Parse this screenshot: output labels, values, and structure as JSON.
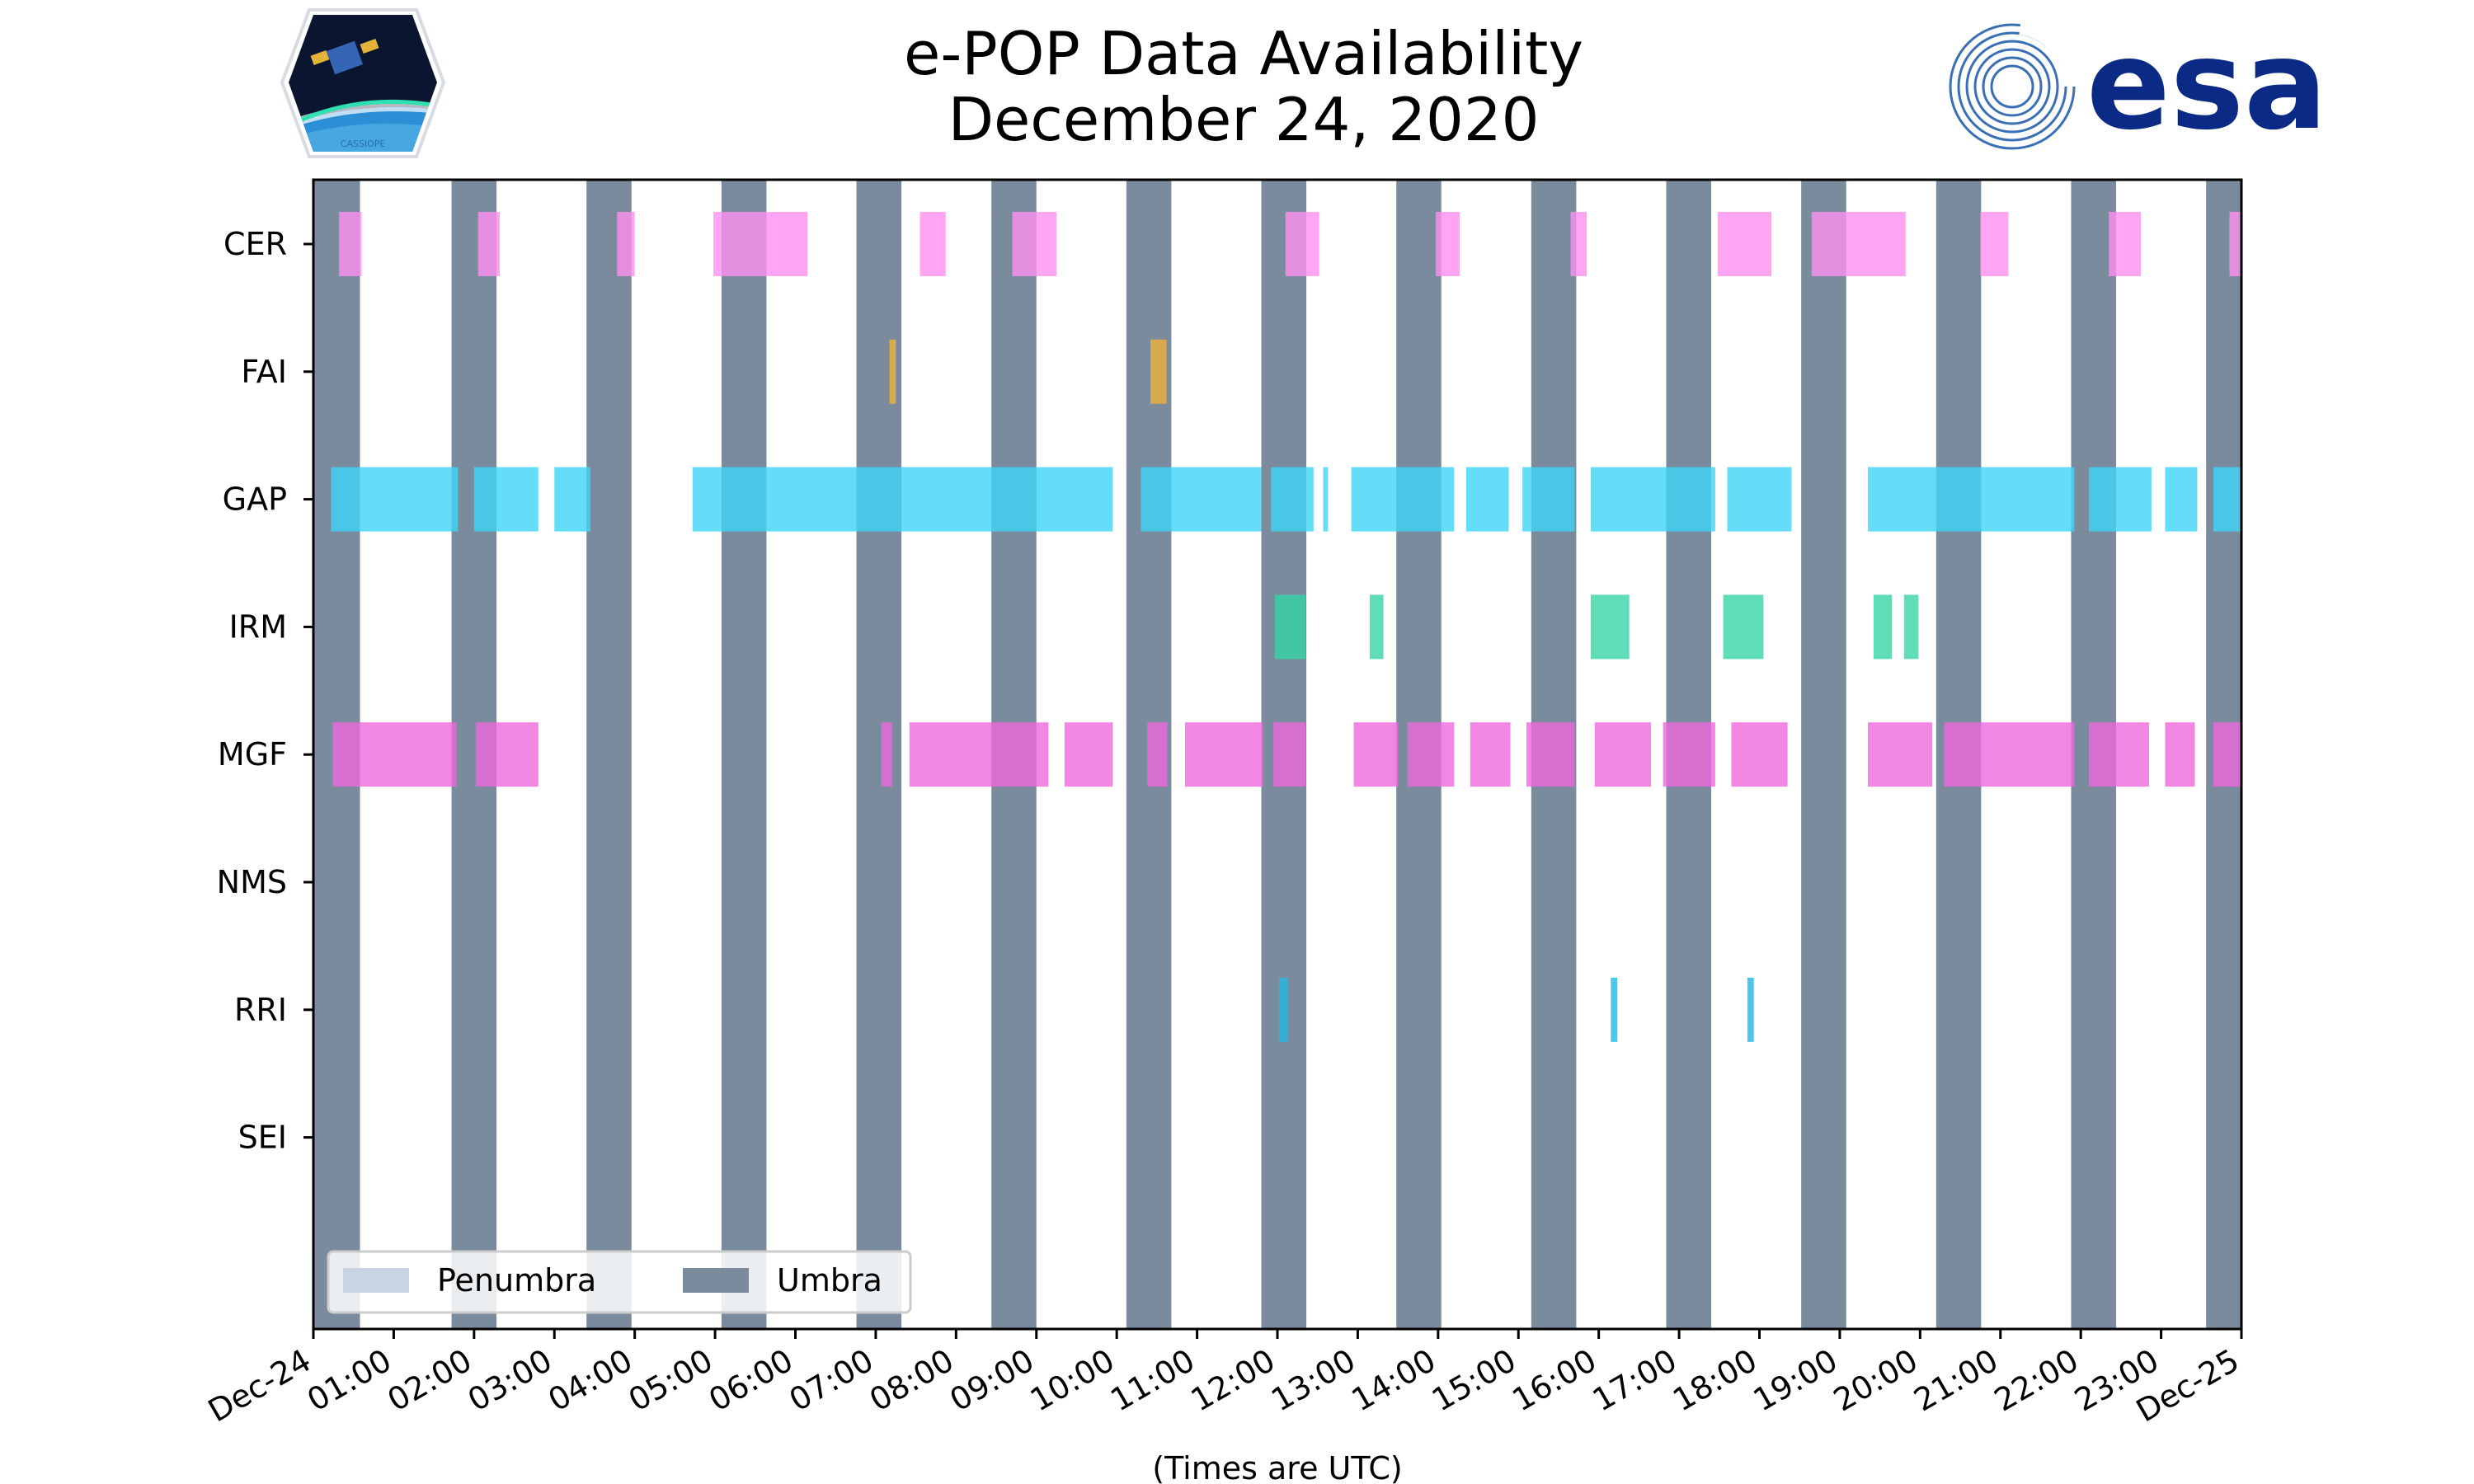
{
  "chart_data": {
    "type": "timeline",
    "title": [
      "e-POP Data Availability",
      "December 24, 2020"
    ],
    "xlabel": "(Times are UTC)",
    "xlim_hours": [
      0,
      24
    ],
    "x_tick_labels": [
      "Dec-24",
      "01:00",
      "02:00",
      "03:00",
      "04:00",
      "05:00",
      "06:00",
      "07:00",
      "08:00",
      "09:00",
      "10:00",
      "11:00",
      "12:00",
      "13:00",
      "14:00",
      "15:00",
      "16:00",
      "17:00",
      "18:00",
      "19:00",
      "20:00",
      "21:00",
      "22:00",
      "23:00",
      "Dec-25"
    ],
    "instruments": [
      "CER",
      "FAI",
      "GAP",
      "IRM",
      "MGF",
      "NMS",
      "RRI",
      "SEI"
    ],
    "legend": [
      {
        "label": "Penumbra",
        "color": "#c7d4e4"
      },
      {
        "label": "Umbra",
        "color": "#7a8b9e"
      }
    ],
    "umbra_intervals": [
      [
        0.0,
        0.58
      ],
      [
        1.72,
        2.28
      ],
      [
        3.4,
        3.96
      ],
      [
        5.08,
        5.64
      ],
      [
        6.76,
        7.32
      ],
      [
        8.44,
        9.0
      ],
      [
        10.12,
        10.68
      ],
      [
        11.8,
        12.36
      ],
      [
        13.48,
        14.04
      ],
      [
        15.16,
        15.72
      ],
      [
        16.84,
        17.4
      ],
      [
        18.52,
        19.08
      ],
      [
        20.2,
        20.76
      ],
      [
        21.88,
        22.44
      ],
      [
        23.56,
        24.0
      ]
    ],
    "series": [
      {
        "name": "CER",
        "color": "#ff8ef0",
        "intervals": [
          [
            0.32,
            0.6
          ],
          [
            2.05,
            2.32
          ],
          [
            3.78,
            4.0
          ],
          [
            4.98,
            6.15
          ],
          [
            7.55,
            7.87
          ],
          [
            8.7,
            9.25
          ],
          [
            12.1,
            12.52
          ],
          [
            13.97,
            14.27
          ],
          [
            15.65,
            15.85
          ],
          [
            17.48,
            18.15
          ],
          [
            18.65,
            19.82
          ],
          [
            20.75,
            21.1
          ],
          [
            22.35,
            22.75
          ],
          [
            23.85,
            24.0
          ]
        ]
      },
      {
        "name": "FAI",
        "color": "#f0b23a",
        "intervals": [
          [
            7.17,
            7.25
          ],
          [
            10.42,
            10.62
          ]
        ]
      },
      {
        "name": "GAP",
        "color": "#3ed4f7",
        "intervals": [
          [
            0.22,
            1.8
          ],
          [
            2.0,
            2.8
          ],
          [
            3.0,
            3.45
          ],
          [
            4.72,
            9.95
          ],
          [
            10.3,
            11.8
          ],
          [
            11.92,
            12.45
          ],
          [
            12.57,
            12.63
          ],
          [
            12.92,
            14.2
          ],
          [
            14.35,
            14.88
          ],
          [
            15.05,
            15.7
          ],
          [
            15.9,
            17.45
          ],
          [
            17.6,
            18.4
          ],
          [
            19.35,
            21.92
          ],
          [
            22.1,
            22.88
          ],
          [
            23.05,
            23.45
          ],
          [
            23.65,
            24.0
          ]
        ]
      },
      {
        "name": "IRM",
        "color": "#36d4a6",
        "intervals": [
          [
            11.97,
            12.35
          ],
          [
            13.15,
            13.32
          ],
          [
            15.9,
            16.38
          ],
          [
            17.55,
            18.05
          ],
          [
            19.42,
            19.65
          ],
          [
            19.8,
            19.98
          ]
        ]
      },
      {
        "name": "MGF",
        "color": "#ef68dc",
        "intervals": [
          [
            0.24,
            1.78
          ],
          [
            2.02,
            2.8
          ],
          [
            7.07,
            7.2
          ],
          [
            7.42,
            9.15
          ],
          [
            9.35,
            9.95
          ],
          [
            10.38,
            10.63
          ],
          [
            10.85,
            11.82
          ],
          [
            11.95,
            12.35
          ],
          [
            12.95,
            13.5
          ],
          [
            13.62,
            14.2
          ],
          [
            14.4,
            14.9
          ],
          [
            15.1,
            15.7
          ],
          [
            15.95,
            16.65
          ],
          [
            16.8,
            17.45
          ],
          [
            17.65,
            18.35
          ],
          [
            19.35,
            20.15
          ],
          [
            20.3,
            21.92
          ],
          [
            22.1,
            22.85
          ],
          [
            23.05,
            23.42
          ],
          [
            23.65,
            24.0
          ]
        ]
      },
      {
        "name": "NMS",
        "color": "#999999",
        "intervals": []
      },
      {
        "name": "RRI",
        "color": "#22b8e6",
        "intervals": [
          [
            12.02,
            12.13
          ],
          [
            16.15,
            16.23
          ],
          [
            17.85,
            17.93
          ]
        ]
      },
      {
        "name": "SEI",
        "color": "#999999",
        "intervals": []
      }
    ]
  },
  "logos": {
    "mission_label": "CASSIOPE",
    "agency_label": "esa"
  }
}
